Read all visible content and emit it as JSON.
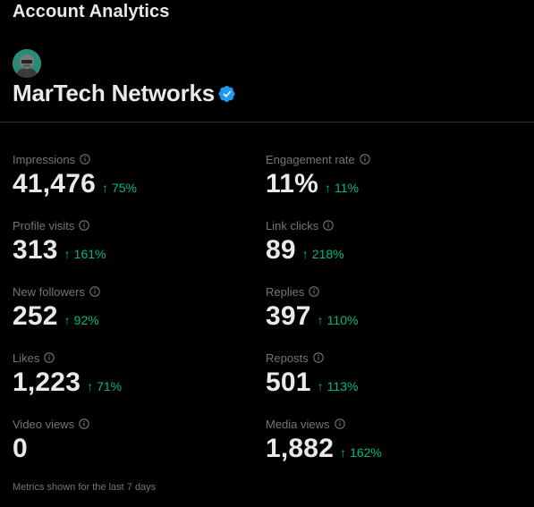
{
  "header": {
    "title": "Account Analytics"
  },
  "account": {
    "name": "MarTech Networks"
  },
  "colors": {
    "accent_green": "#00ba7c",
    "verified_blue": "#1d9bf0",
    "muted": "#71767b"
  },
  "metrics": [
    {
      "label": "Impressions",
      "value": "41,476",
      "change": "75%"
    },
    {
      "label": "Engagement rate",
      "value": "11%",
      "change": "11%"
    },
    {
      "label": "Profile visits",
      "value": "313",
      "change": "161%"
    },
    {
      "label": "Link clicks",
      "value": "89",
      "change": "218%"
    },
    {
      "label": "New followers",
      "value": "252",
      "change": "92%"
    },
    {
      "label": "Replies",
      "value": "397",
      "change": "110%"
    },
    {
      "label": "Likes",
      "value": "1,223",
      "change": "71%"
    },
    {
      "label": "Reposts",
      "value": "501",
      "change": "113%"
    },
    {
      "label": "Video views",
      "value": "0",
      "change": ""
    },
    {
      "label": "Media views",
      "value": "1,882",
      "change": "162%"
    }
  ],
  "footer": {
    "note": "Metrics shown for the last 7 days"
  }
}
